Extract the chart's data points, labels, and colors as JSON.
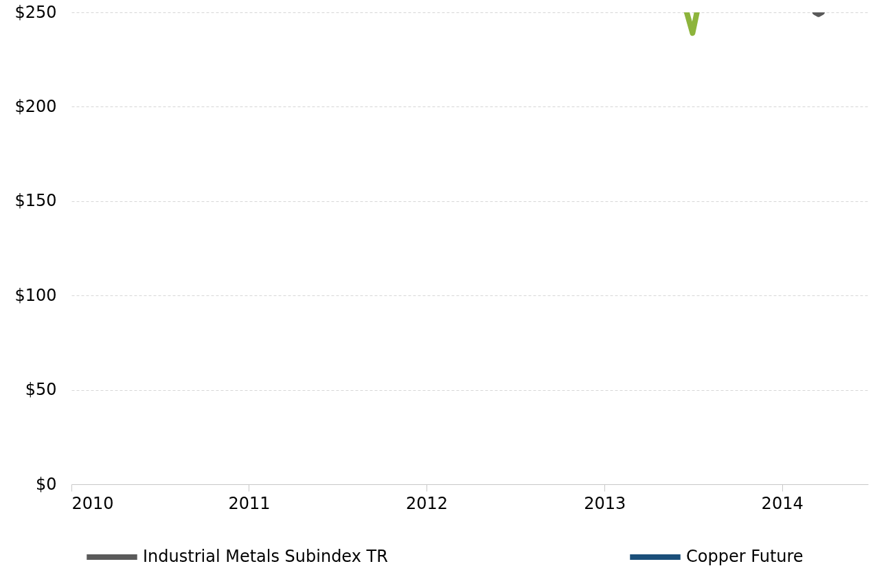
{
  "chart_data": {
    "type": "line",
    "xlim": [
      "2010-01-01",
      "2014-06-27"
    ],
    "xticks": [
      "2010",
      "2011",
      "2012",
      "2013",
      "2014"
    ],
    "ylim": [
      0,
      250
    ],
    "yticks": [
      {
        "value": 0,
        "label": "$0"
      },
      {
        "value": 50,
        "label": "$50"
      },
      {
        "value": 100,
        "label": "$100"
      },
      {
        "value": 150,
        "label": "$150"
      },
      {
        "value": 200,
        "label": "$200"
      },
      {
        "value": 250,
        "label": "$250"
      }
    ],
    "grid": "y",
    "legend": "bottom",
    "series": [
      {
        "name": "Industrial Metals Subindex TR",
        "color": "#5a5a5a",
        "x": [
          "2014-03-10",
          "2014-03-17",
          "2014-03-24"
        ],
        "values": [
          250,
          249,
          250
        ]
      },
      {
        "name": "Copper Future",
        "color": "#1b4f7a"
      },
      {
        "color": "#8db43c",
        "x": [
          "2013-06-19",
          "2013-07-01",
          "2013-07-10"
        ],
        "values": [
          250,
          239,
          250
        ]
      }
    ]
  }
}
